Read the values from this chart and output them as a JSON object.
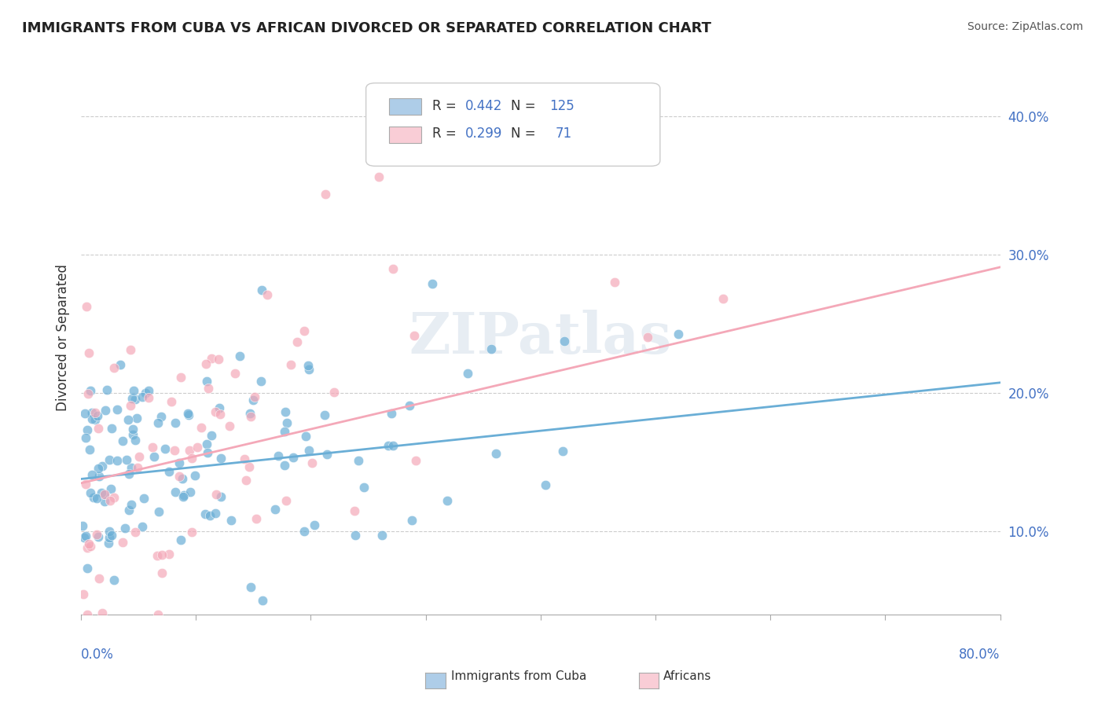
{
  "title": "IMMIGRANTS FROM CUBA VS AFRICAN DIVORCED OR SEPARATED CORRELATION CHART",
  "source": "Source: ZipAtlas.com",
  "ylabel": "Divorced or Separated",
  "color_blue": "#6aaed6",
  "color_pink": "#f4a8b8",
  "color_blue_light": "#aecde8",
  "color_pink_light": "#f9cdd6",
  "watermark": "ZIPatlas",
  "xlim": [
    0.0,
    0.8
  ],
  "ylim": [
    0.04,
    0.44
  ],
  "blue_N": 125,
  "pink_N": 71,
  "blue_slope": 0.087,
  "blue_intercept": 0.138,
  "pink_slope": 0.195,
  "pink_intercept": 0.135,
  "title_color": "#222222",
  "axis_color": "#4472c4",
  "grid_color": "#cccccc",
  "background_color": "#ffffff"
}
